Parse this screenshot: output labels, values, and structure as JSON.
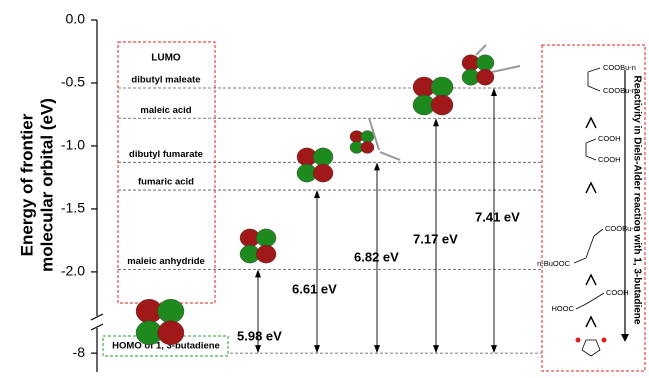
{
  "chart_data": {
    "type": "level",
    "ylabel": [
      "Energy of frontier",
      "molecular orbital (eV)"
    ],
    "ylim": [
      -2.35,
      0
    ],
    "ylim_break": [
      -8.15,
      -7.8
    ],
    "yticks": [
      {
        "value": 0,
        "label": "0.0"
      },
      -0.5,
      {
        "value": -1,
        "label": "-1.0"
      },
      -1.5,
      {
        "value": -2,
        "label": "-2.0"
      },
      -8
    ],
    "lumo_title": "LUMO",
    "levels": {
      "names": [
        "dibutyl maleate",
        "maleic acid",
        "dibutyl fumarate",
        "fumaric acid",
        "maleic anhydride"
      ],
      "values": [
        -0.54,
        -0.78,
        -1.13,
        -1.35,
        -1.98
      ]
    },
    "homo": {
      "name": "HOMO of 1, 3-butadiene",
      "value": -8
    },
    "gaps": {
      "values": [
        5.98,
        6.61,
        6.82,
        7.17,
        7.41
      ],
      "value_labels": [
        "5.98 eV",
        "6.61 eV",
        "6.82 eV",
        "7.17 eV",
        "7.41 eV"
      ]
    },
    "reactivity_label": "Reactivity  in Diels-Alder reaction with 1, 3-butadiene",
    "structures": [
      [
        "COOBu-n",
        "COOBu-n"
      ],
      [
        "COOH",
        "COOH"
      ],
      [
        "COOBu-n",
        "n-BuOOC"
      ],
      [
        "COOH",
        "HOOC"
      ]
    ]
  }
}
